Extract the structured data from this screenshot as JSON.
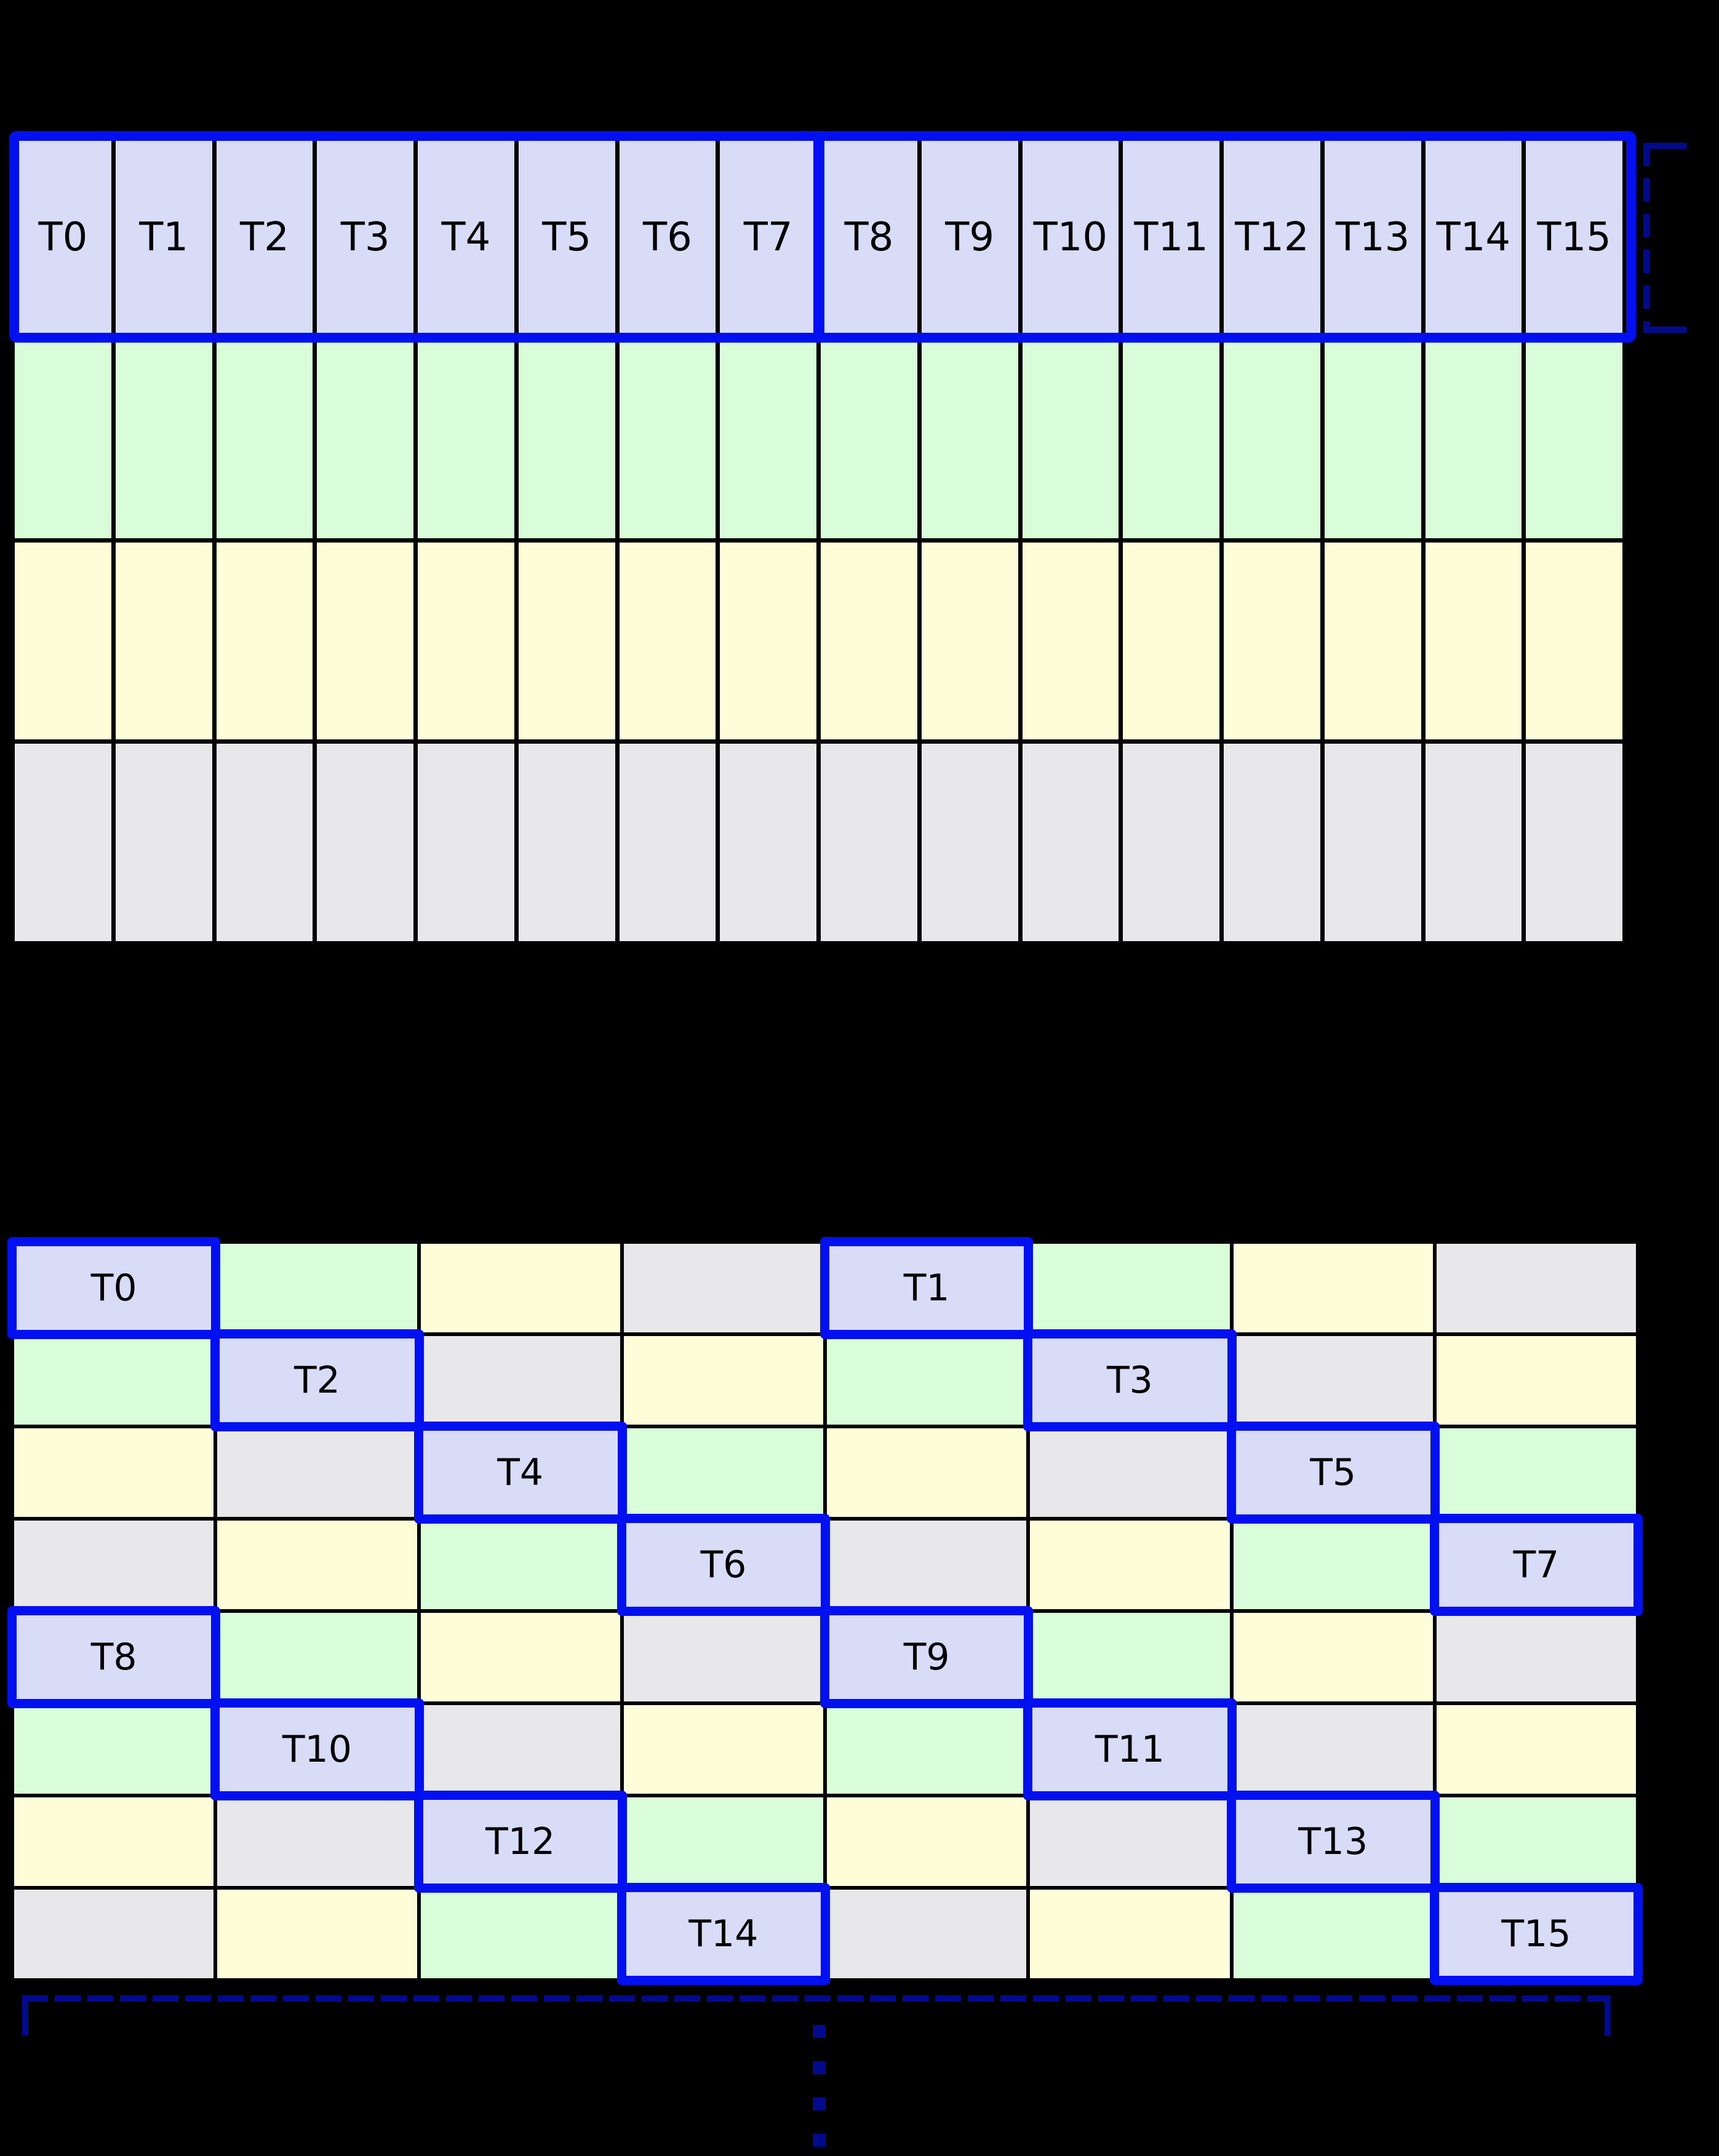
{
  "colors": {
    "background": "#000000",
    "grid_line": "#000000",
    "thread_fill": "#d8dcf7",
    "green_fill": "#d9fcd9",
    "yellow_fill": "#fdfdd7",
    "gray_fill": "#e8e8eb",
    "highlight_border": "#0010f0",
    "bracket_navy": "#000a8c",
    "label_text": "#000000"
  },
  "top_grid": {
    "columns": 16,
    "rows": 4,
    "thread_labels": [
      "T0",
      "T1",
      "T2",
      "T3",
      "T4",
      "T5",
      "T6",
      "T7",
      "T8",
      "T9",
      "T10",
      "T11",
      "T12",
      "T13",
      "T14",
      "T15"
    ],
    "body_row_fills": [
      "green",
      "yellow",
      "gray"
    ],
    "warp_split_after_column": 8
  },
  "bottom_grid": {
    "columns": 8,
    "rows": [
      [
        "T0",
        "green",
        "yellow",
        "gray",
        "T1",
        "green",
        "yellow",
        "gray"
      ],
      [
        "green",
        "T2",
        "gray",
        "yellow",
        "green",
        "T3",
        "gray",
        "yellow"
      ],
      [
        "yellow",
        "gray",
        "T4",
        "green",
        "yellow",
        "gray",
        "T5",
        "green"
      ],
      [
        "gray",
        "yellow",
        "green",
        "T6",
        "gray",
        "yellow",
        "green",
        "T7"
      ],
      [
        "T8",
        "green",
        "yellow",
        "gray",
        "T9",
        "green",
        "yellow",
        "gray"
      ],
      [
        "green",
        "T10",
        "gray",
        "yellow",
        "green",
        "T11",
        "gray",
        "yellow"
      ],
      [
        "yellow",
        "gray",
        "T12",
        "green",
        "yellow",
        "gray",
        "T13",
        "green"
      ],
      [
        "gray",
        "yellow",
        "green",
        "T14",
        "gray",
        "yellow",
        "green",
        "T15"
      ]
    ]
  }
}
